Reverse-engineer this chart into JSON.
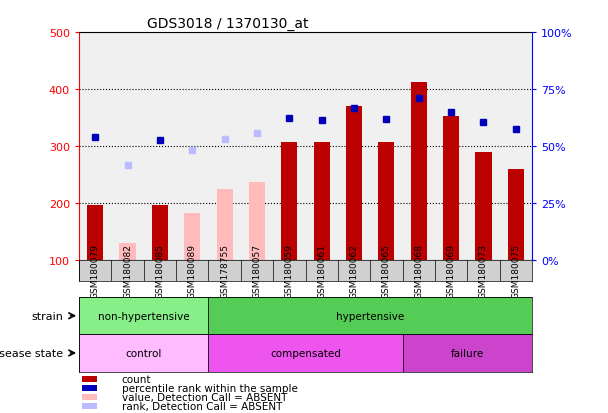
{
  "title": "GDS3018 / 1370130_at",
  "samples": [
    "GSM180079",
    "GSM180082",
    "GSM180085",
    "GSM180089",
    "GSM178755",
    "GSM180057",
    "GSM180059",
    "GSM180061",
    "GSM180062",
    "GSM180065",
    "GSM180068",
    "GSM180069",
    "GSM180073",
    "GSM180075"
  ],
  "count_values": [
    197,
    null,
    197,
    null,
    null,
    null,
    307,
    307,
    370,
    307,
    413,
    352,
    290,
    260
  ],
  "count_absent": [
    null,
    130,
    null,
    183,
    225,
    237,
    null,
    null,
    null,
    null,
    null,
    null,
    null,
    null
  ],
  "percentile_values": [
    315,
    null,
    310,
    null,
    null,
    null,
    350,
    345,
    367,
    348,
    384,
    360,
    342,
    330
  ],
  "percentile_absent": [
    null,
    267,
    null,
    293,
    313,
    322,
    null,
    null,
    null,
    null,
    null,
    null,
    null,
    null
  ],
  "ylim_left": [
    100,
    500
  ],
  "ylim_right": [
    0,
    100
  ],
  "yticks_left": [
    100,
    200,
    300,
    400,
    500
  ],
  "bar_color_red": "#bb0000",
  "bar_color_pink": "#ffbbbb",
  "marker_color_blue": "#0000bb",
  "marker_color_lightblue": "#bbbbff",
  "strain_groups": [
    {
      "label": "non-hypertensive",
      "start": 0,
      "end": 4,
      "color": "#88ee88"
    },
    {
      "label": "hypertensive",
      "start": 4,
      "end": 14,
      "color": "#55cc55"
    }
  ],
  "disease_groups": [
    {
      "label": "control",
      "start": 0,
      "end": 4,
      "color": "#ffbbff"
    },
    {
      "label": "compensated",
      "start": 4,
      "end": 10,
      "color": "#ee55ee"
    },
    {
      "label": "failure",
      "start": 10,
      "end": 14,
      "color": "#cc44cc"
    }
  ],
  "legend_items": [
    {
      "label": "count",
      "color": "#bb0000"
    },
    {
      "label": "percentile rank within the sample",
      "color": "#0000bb"
    },
    {
      "label": "value, Detection Call = ABSENT",
      "color": "#ffbbbb"
    },
    {
      "label": "rank, Detection Call = ABSENT",
      "color": "#bbbbff"
    }
  ],
  "strain_label": "strain",
  "disease_label": "disease state",
  "axis_bg": "#f0f0f0",
  "xticklabel_bg": "#d0d0d0"
}
